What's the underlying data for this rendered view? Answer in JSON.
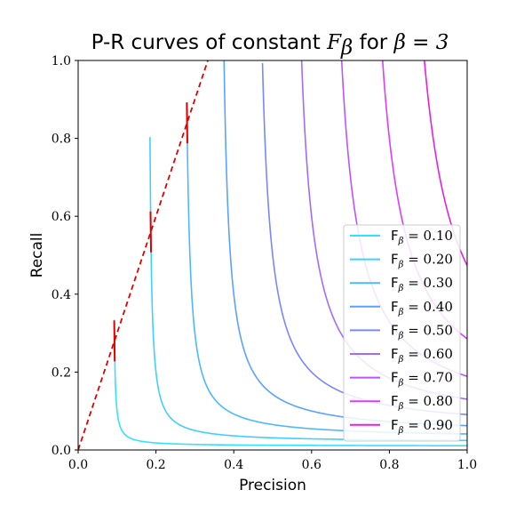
{
  "chart_data": {
    "type": "line",
    "title": {
      "prefix": "P-R curves of constant ",
      "symbol": "F",
      "symbol_sub": "β",
      "middle": " for ",
      "beta_expr": "β = 3"
    },
    "xlabel": "Precision",
    "ylabel": "Recall",
    "xlim": [
      0.0,
      1.0
    ],
    "ylim": [
      0.0,
      1.0
    ],
    "x_ticks": [
      "0.0",
      "0.2",
      "0.4",
      "0.6",
      "0.8",
      "1.0"
    ],
    "y_ticks": [
      "0.0",
      "0.2",
      "0.4",
      "0.6",
      "0.8",
      "1.0"
    ],
    "grid": false,
    "legend_position": "lower-right",
    "beta": 3,
    "series": [
      {
        "name": "F_β = 0.10",
        "f": 0.1,
        "color": "#33e1ff"
      },
      {
        "name": "F_β = 0.20",
        "f": 0.2,
        "color": "#40cfff"
      },
      {
        "name": "F_β = 0.30",
        "f": 0.3,
        "color": "#4db8ff"
      },
      {
        "name": "F_β = 0.40",
        "f": 0.4,
        "color": "#5aa2ff"
      },
      {
        "name": "F_β = 0.50",
        "f": 0.5,
        "color": "#7a86ff"
      },
      {
        "name": "F_β = 0.60",
        "f": 0.6,
        "color": "#a06bff"
      },
      {
        "name": "F_β = 0.70",
        "f": 0.7,
        "color": "#bf52ff"
      },
      {
        "name": "F_β = 0.80",
        "f": 0.8,
        "color": "#dd3bff"
      },
      {
        "name": "F_β = 0.90",
        "f": 0.9,
        "color": "#e81ee0"
      }
    ],
    "legend_entries": [
      {
        "label": "F",
        "sub": "β",
        "value": " = 0.10"
      },
      {
        "label": "F",
        "sub": "β",
        "value": " = 0.20"
      },
      {
        "label": "F",
        "sub": "β",
        "value": " = 0.30"
      },
      {
        "label": "F",
        "sub": "β",
        "value": " = 0.40"
      },
      {
        "label": "F",
        "sub": "β",
        "value": " = 0.50"
      },
      {
        "label": "F",
        "sub": "β",
        "value": " = 0.60"
      },
      {
        "label": "F",
        "sub": "β",
        "value": " = 0.70"
      },
      {
        "label": "F",
        "sub": "β",
        "value": " = 0.80"
      },
      {
        "label": "F",
        "sub": "β",
        "value": " = 0.90"
      }
    ],
    "reference_line": {
      "style": "dashed",
      "color": "#e00000",
      "slope": 3
    },
    "tangent_marker_color": "#e00000"
  }
}
